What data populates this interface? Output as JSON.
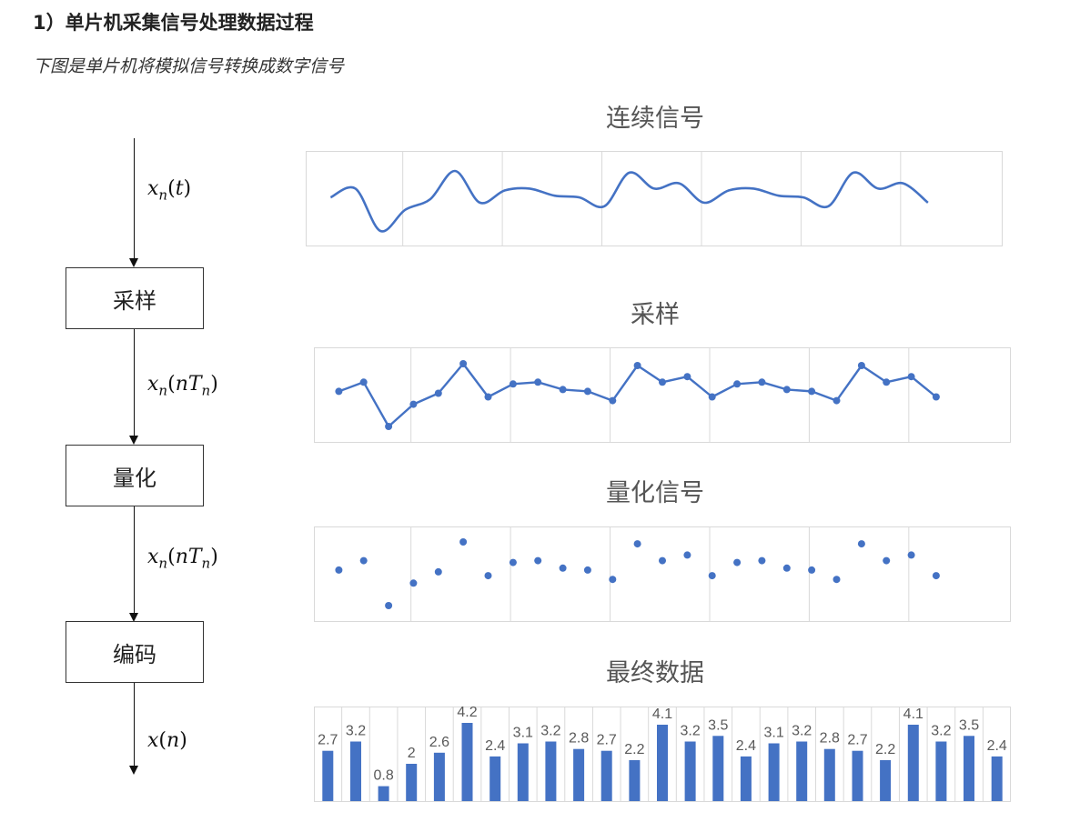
{
  "heading": "1）单片机采集信号处理数据过程",
  "subheading": "下图是单片机将模拟信号转换成数字信号",
  "flow": {
    "boxes": [
      "采样",
      "量化",
      "编码"
    ],
    "signals": [
      {
        "base": "x",
        "sub": "n",
        "arg": "t",
        "argsub": ""
      },
      {
        "base": "x",
        "sub": "n",
        "arg": "nT",
        "argsub": "n"
      },
      {
        "base": "x",
        "sub": "n",
        "arg": "nT",
        "argsub": "n"
      },
      {
        "base": "x",
        "sub": "",
        "arg": "n",
        "argsub": ""
      }
    ]
  },
  "colors": {
    "series": "#4472c4",
    "grid": "#d9d9d9",
    "label": "#595959"
  },
  "chart_data": [
    {
      "type": "line",
      "title": "连续信号",
      "smooth": true,
      "markers": false,
      "values": [
        2.7,
        3.2,
        0.8,
        2,
        2.6,
        4.2,
        2.4,
        3.1,
        3.2,
        2.8,
        2.7,
        2.2,
        4.1,
        3.2,
        3.5,
        2.4,
        3.1,
        3.2,
        2.8,
        2.7,
        2.2,
        4.1,
        3.2,
        3.5,
        2.4
      ]
    },
    {
      "type": "line",
      "title": "采样",
      "smooth": false,
      "markers": true,
      "values": [
        2.7,
        3.2,
        0.8,
        2,
        2.6,
        4.2,
        2.4,
        3.1,
        3.2,
        2.8,
        2.7,
        2.2,
        4.1,
        3.2,
        3.5,
        2.4,
        3.1,
        3.2,
        2.8,
        2.7,
        2.2,
        4.1,
        3.2,
        3.5,
        2.4
      ]
    },
    {
      "type": "scatter",
      "title": "量化信号",
      "values": [
        2.7,
        3.2,
        0.8,
        2,
        2.6,
        4.2,
        2.4,
        3.1,
        3.2,
        2.8,
        2.7,
        2.2,
        4.1,
        3.2,
        3.5,
        2.4,
        3.1,
        3.2,
        2.8,
        2.7,
        2.2,
        4.1,
        3.2,
        3.5,
        2.4
      ]
    },
    {
      "type": "bar",
      "title": "最终数据",
      "data_labels": true,
      "values": [
        2.7,
        3.2,
        0.8,
        2,
        2.6,
        4.2,
        2.4,
        3.1,
        3.2,
        2.8,
        2.7,
        2.2,
        4.1,
        3.2,
        3.5,
        2.4,
        3.1,
        3.2,
        2.8,
        2.7,
        2.2,
        4.1,
        3.2,
        3.5,
        2.4
      ]
    }
  ]
}
